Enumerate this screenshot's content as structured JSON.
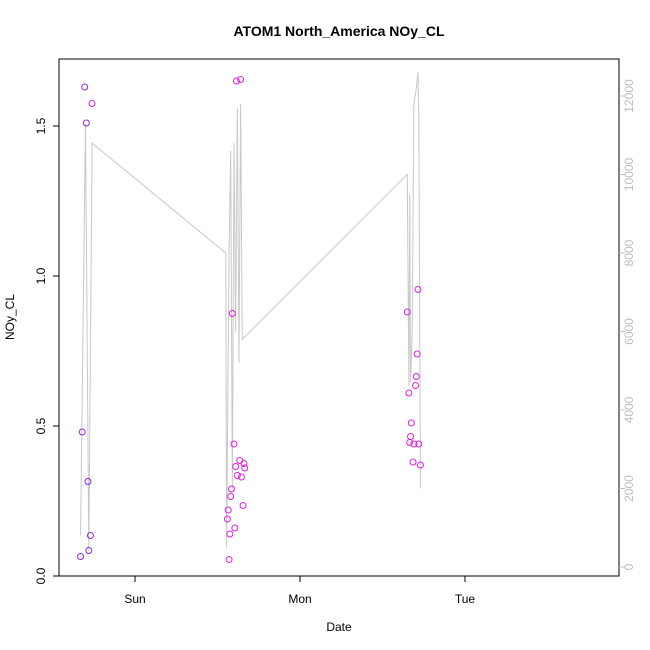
{
  "chart_data": {
    "type": "scatter",
    "title": "ATOM1 North_America NOy_CL",
    "xlabel": "Date",
    "ylabel": "NOy_CL",
    "x_ticks": [
      "Sun",
      "Mon",
      "Tue"
    ],
    "y_ticks": [
      "0.0",
      "0.5",
      "1.0",
      "1.5"
    ],
    "y2_ticks": [
      "0",
      "2000",
      "4000",
      "6000",
      "8000",
      "10000",
      "12000"
    ],
    "x_range_days": [
      -0.33,
      1.93
    ],
    "ylim": [
      0,
      1.72
    ],
    "y2lim": [
      0,
      12600
    ],
    "colors": {
      "points_purple": "#8a2be2",
      "points_magenta": "#e020e0",
      "altitude_line": "#c8c8c8"
    },
    "series": [
      {
        "axis": "left",
        "points": [
          {
            "x": -0.33,
            "y": 0.065,
            "c": "points_purple"
          },
          {
            "x": -0.32,
            "y": 0.48,
            "c": "points_purple"
          },
          {
            "x": -0.305,
            "y": 1.63,
            "c": "points_purple"
          },
          {
            "x": -0.295,
            "y": 1.51,
            "c": "points_purple"
          },
          {
            "x": -0.285,
            "y": 0.315,
            "c": "points_purple"
          },
          {
            "x": -0.28,
            "y": 0.085,
            "c": "points_purple"
          },
          {
            "x": -0.27,
            "y": 0.135,
            "c": "points_purple"
          },
          {
            "x": -0.26,
            "y": 1.575,
            "c": "points_magenta"
          },
          {
            "x": 0.56,
            "y": 0.19,
            "c": "points_magenta"
          },
          {
            "x": 0.565,
            "y": 0.22,
            "c": "points_magenta"
          },
          {
            "x": 0.57,
            "y": 0.055,
            "c": "points_magenta"
          },
          {
            "x": 0.575,
            "y": 0.14,
            "c": "points_magenta"
          },
          {
            "x": 0.58,
            "y": 0.265,
            "c": "points_magenta"
          },
          {
            "x": 0.585,
            "y": 0.29,
            "c": "points_magenta"
          },
          {
            "x": 0.59,
            "y": 0.875,
            "c": "points_magenta"
          },
          {
            "x": 0.6,
            "y": 0.44,
            "c": "points_magenta"
          },
          {
            "x": 0.605,
            "y": 0.16,
            "c": "points_magenta"
          },
          {
            "x": 0.61,
            "y": 0.365,
            "c": "points_magenta"
          },
          {
            "x": 0.615,
            "y": 1.65,
            "c": "points_magenta"
          },
          {
            "x": 0.62,
            "y": 0.335,
            "c": "points_magenta"
          },
          {
            "x": 0.635,
            "y": 0.385,
            "c": "points_magenta"
          },
          {
            "x": 0.64,
            "y": 1.655,
            "c": "points_magenta"
          },
          {
            "x": 0.645,
            "y": 0.33,
            "c": "points_magenta"
          },
          {
            "x": 0.655,
            "y": 0.235,
            "c": "points_magenta"
          },
          {
            "x": 0.66,
            "y": 0.375,
            "c": "points_magenta"
          },
          {
            "x": 0.665,
            "y": 0.36,
            "c": "points_magenta"
          },
          {
            "x": 1.65,
            "y": 0.88,
            "c": "points_magenta"
          },
          {
            "x": 1.66,
            "y": 0.61,
            "c": "points_magenta"
          },
          {
            "x": 1.665,
            "y": 0.445,
            "c": "points_magenta"
          },
          {
            "x": 1.67,
            "y": 0.465,
            "c": "points_magenta"
          },
          {
            "x": 1.675,
            "y": 0.51,
            "c": "points_magenta"
          },
          {
            "x": 1.685,
            "y": 0.38,
            "c": "points_magenta"
          },
          {
            "x": 1.69,
            "y": 0.44,
            "c": "points_magenta"
          },
          {
            "x": 1.7,
            "y": 0.635,
            "c": "points_magenta"
          },
          {
            "x": 1.705,
            "y": 0.665,
            "c": "points_magenta"
          },
          {
            "x": 1.71,
            "y": 0.74,
            "c": "points_magenta"
          },
          {
            "x": 1.715,
            "y": 0.955,
            "c": "points_magenta"
          },
          {
            "x": 1.72,
            "y": 0.44,
            "c": "points_magenta"
          },
          {
            "x": 1.73,
            "y": 0.37,
            "c": "points_magenta"
          }
        ]
      },
      {
        "axis": "right",
        "line": [
          {
            "x": -0.33,
            "y": 800
          },
          {
            "x": -0.3,
            "y": 11300
          },
          {
            "x": -0.28,
            "y": 400
          },
          {
            "x": -0.26,
            "y": 10800
          },
          {
            "x": 0.55,
            "y": 8000
          },
          {
            "x": 0.555,
            "y": 500
          },
          {
            "x": 0.57,
            "y": 8000
          },
          {
            "x": 0.58,
            "y": 10600
          },
          {
            "x": 0.59,
            "y": 2000
          },
          {
            "x": 0.6,
            "y": 10800
          },
          {
            "x": 0.61,
            "y": 6000
          },
          {
            "x": 0.62,
            "y": 11700
          },
          {
            "x": 0.63,
            "y": 5200
          },
          {
            "x": 0.64,
            "y": 11800
          },
          {
            "x": 0.65,
            "y": 5800
          },
          {
            "x": 1.65,
            "y": 10000
          },
          {
            "x": 1.66,
            "y": 4600
          },
          {
            "x": 1.665,
            "y": 9500
          },
          {
            "x": 1.67,
            "y": 4700
          },
          {
            "x": 1.68,
            "y": 6000
          },
          {
            "x": 1.69,
            "y": 11800
          },
          {
            "x": 1.705,
            "y": 12200
          },
          {
            "x": 1.715,
            "y": 12600
          },
          {
            "x": 1.72,
            "y": 11500
          },
          {
            "x": 1.73,
            "y": 2000
          }
        ]
      }
    ]
  }
}
